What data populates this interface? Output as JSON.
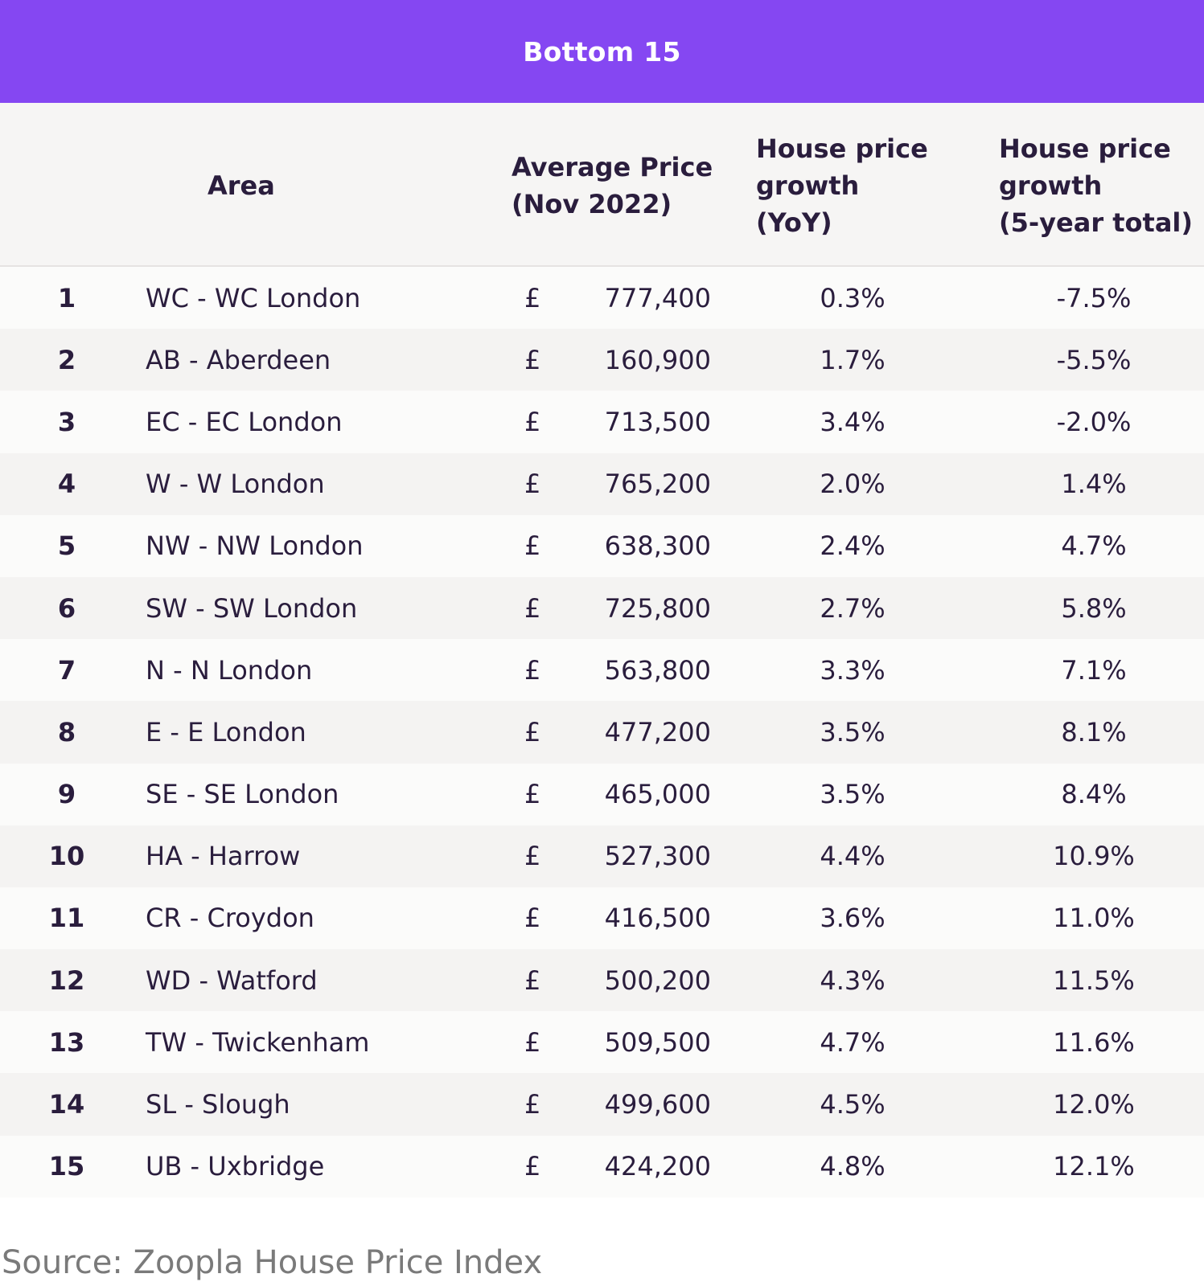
{
  "title": "Bottom 15",
  "columns": {
    "area": "Area",
    "price": [
      "Average Price",
      "(Nov 2022)"
    ],
    "yoy": [
      "House price",
      "growth",
      "(YoY)"
    ],
    "five": [
      "House price",
      "growth",
      "(5-year total)"
    ]
  },
  "currency_symbol": "£",
  "source": "Source: Zoopla House Price Index",
  "colors": {
    "title_bar": "#8547f2",
    "text": "#2a1d3d"
  },
  "chart_data": {
    "type": "table",
    "title": "Bottom 15",
    "headers": [
      "",
      "Area",
      "Average Price (Nov 2022)",
      "House price growth (YoY)",
      "House price growth (5-year total)"
    ],
    "rows": [
      {
        "rank": "1",
        "area": "WC - WC London",
        "price": "777,400",
        "yoy": "0.3%",
        "five": "-7.5%"
      },
      {
        "rank": "2",
        "area": "AB - Aberdeen",
        "price": "160,900",
        "yoy": "1.7%",
        "five": "-5.5%"
      },
      {
        "rank": "3",
        "area": "EC - EC London",
        "price": "713,500",
        "yoy": "3.4%",
        "five": "-2.0%"
      },
      {
        "rank": "4",
        "area": "W - W London",
        "price": "765,200",
        "yoy": "2.0%",
        "five": "1.4%"
      },
      {
        "rank": "5",
        "area": "NW - NW London",
        "price": "638,300",
        "yoy": "2.4%",
        "five": "4.7%"
      },
      {
        "rank": "6",
        "area": "SW - SW London",
        "price": "725,800",
        "yoy": "2.7%",
        "five": "5.8%"
      },
      {
        "rank": "7",
        "area": "N - N London",
        "price": "563,800",
        "yoy": "3.3%",
        "five": "7.1%"
      },
      {
        "rank": "8",
        "area": "E - E London",
        "price": "477,200",
        "yoy": "3.5%",
        "five": "8.1%"
      },
      {
        "rank": "9",
        "area": "SE - SE London",
        "price": "465,000",
        "yoy": "3.5%",
        "five": "8.4%"
      },
      {
        "rank": "10",
        "area": "HA - Harrow",
        "price": "527,300",
        "yoy": "4.4%",
        "five": "10.9%"
      },
      {
        "rank": "11",
        "area": "CR - Croydon",
        "price": "416,500",
        "yoy": "3.6%",
        "five": "11.0%"
      },
      {
        "rank": "12",
        "area": "WD - Watford",
        "price": "500,200",
        "yoy": "4.3%",
        "five": "11.5%"
      },
      {
        "rank": "13",
        "area": "TW - Twickenham",
        "price": "509,500",
        "yoy": "4.7%",
        "five": "11.6%"
      },
      {
        "rank": "14",
        "area": "SL - Slough",
        "price": "499,600",
        "yoy": "4.5%",
        "five": "12.0%"
      },
      {
        "rank": "15",
        "area": "UB - Uxbridge",
        "price": "424,200",
        "yoy": "4.8%",
        "five": "12.1%"
      }
    ]
  }
}
